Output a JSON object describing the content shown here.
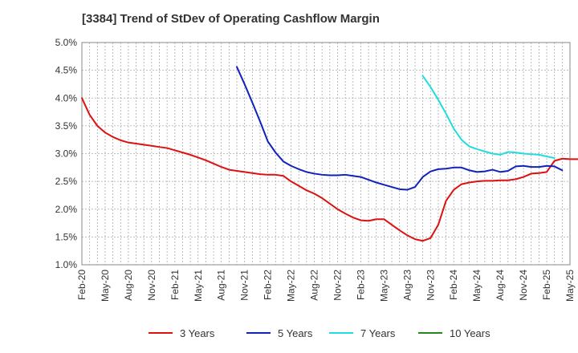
{
  "chart_data": {
    "type": "line",
    "title": "[3384]  Trend of StDev of Operating Cashflow Margin",
    "xlabel": "",
    "ylabel": "",
    "y_unit": "%",
    "ylim": [
      1.0,
      5.0
    ],
    "y_ticks": [
      "1.0%",
      "1.5%",
      "2.0%",
      "2.5%",
      "3.0%",
      "3.5%",
      "4.0%",
      "4.5%",
      "5.0%"
    ],
    "x_ticks": [
      "Feb-20",
      "May-20",
      "Aug-20",
      "Nov-20",
      "Feb-21",
      "May-21",
      "Aug-21",
      "Nov-21",
      "Feb-22",
      "May-22",
      "Aug-22",
      "Nov-22",
      "Feb-23",
      "May-23",
      "Aug-23",
      "Nov-23",
      "Feb-24",
      "May-24",
      "Aug-24",
      "Nov-24",
      "Feb-25",
      "May-25"
    ],
    "x_start": "2020-02",
    "grid": "dashed",
    "legend_position": "bottom",
    "series": [
      {
        "name": "3 Years",
        "color": "#dd1111",
        "start": "2020-02",
        "values": [
          4.0,
          3.7,
          3.5,
          3.38,
          3.3,
          3.24,
          3.2,
          3.18,
          3.16,
          3.14,
          3.12,
          3.1,
          3.06,
          3.02,
          2.98,
          2.93,
          2.88,
          2.82,
          2.76,
          2.71,
          2.69,
          2.67,
          2.65,
          2.63,
          2.62,
          2.62,
          2.6,
          2.5,
          2.42,
          2.34,
          2.28,
          2.2,
          2.1,
          2.0,
          1.92,
          1.85,
          1.8,
          1.79,
          1.82,
          1.82,
          1.72,
          1.62,
          1.53,
          1.46,
          1.43,
          1.48,
          1.72,
          2.15,
          2.35,
          2.45,
          2.48,
          2.5,
          2.51,
          2.51,
          2.52,
          2.52,
          2.54,
          2.58,
          2.64,
          2.65,
          2.67,
          2.87,
          2.91,
          2.9,
          2.9,
          2.89,
          2.88,
          2.87,
          2.86
        ]
      },
      {
        "name": "5 Years",
        "color": "#1122bb",
        "start": "2021-10",
        "values": [
          4.56,
          4.25,
          3.92,
          3.58,
          3.22,
          3.02,
          2.86,
          2.78,
          2.72,
          2.67,
          2.64,
          2.62,
          2.61,
          2.61,
          2.62,
          2.6,
          2.58,
          2.53,
          2.48,
          2.44,
          2.4,
          2.36,
          2.35,
          2.4,
          2.58,
          2.68,
          2.72,
          2.73,
          2.75,
          2.75,
          2.7,
          2.67,
          2.68,
          2.71,
          2.67,
          2.69,
          2.77,
          2.78,
          2.76,
          2.76,
          2.78,
          2.77,
          2.7
        ]
      },
      {
        "name": "7 Years",
        "color": "#22dddd",
        "start": "2023-10",
        "values": [
          4.4,
          4.2,
          3.97,
          3.72,
          3.45,
          3.25,
          3.13,
          3.08,
          3.04,
          3.0,
          2.98,
          3.03,
          3.02,
          3.0,
          2.99,
          2.98,
          2.95,
          2.92
        ]
      },
      {
        "name": "10 Years",
        "color": "#228822",
        "start": "2020-02",
        "values": []
      }
    ]
  }
}
